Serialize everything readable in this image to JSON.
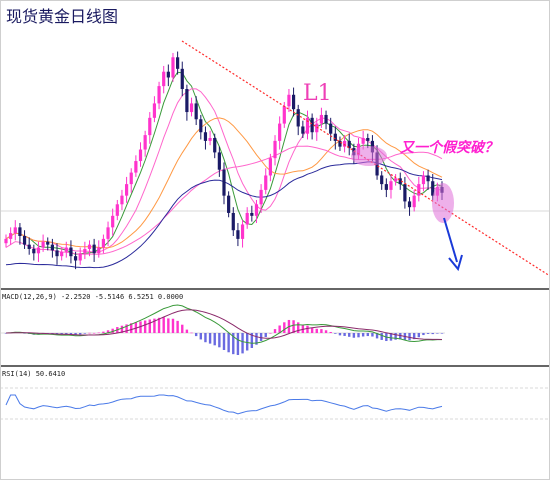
{
  "title": "现货黄金日线图",
  "trendline_label": "L1",
  "annotation": "又一个假突破？",
  "indicators": {
    "macd_label": "MACD(12,26,9) -2.2520 -5.5146 6.5251 0.0000",
    "rsi_label": "RSI(14) 50.6410"
  },
  "colors": {
    "bull_candle": "#ff33cc",
    "bear_candle": "#1a1a66",
    "trendline": "#ff2a2a",
    "ma_fast": "#3a9a3a",
    "ma_mid": "#ff66cc",
    "ma_slow": "#ff9944",
    "ma_long": "#2a2a9a",
    "rsi": "#4a7ae8",
    "arrow": "#1a3ad8",
    "highlight": "#e070d8"
  },
  "chart_data": {
    "type": "candlestick",
    "title": "现货黄金日线图",
    "closes": [
      1262,
      1266,
      1270,
      1264,
      1258,
      1255,
      1252,
      1256,
      1260,
      1258,
      1254,
      1250,
      1253,
      1256,
      1250,
      1247,
      1252,
      1255,
      1258,
      1252,
      1256,
      1262,
      1270,
      1278,
      1286,
      1292,
      1300,
      1308,
      1316,
      1324,
      1334,
      1346,
      1356,
      1368,
      1378,
      1374,
      1388,
      1380,
      1366,
      1350,
      1356,
      1345,
      1336,
      1330,
      1332,
      1322,
      1310,
      1292,
      1280,
      1268,
      1262,
      1272,
      1280,
      1278,
      1286,
      1296,
      1306,
      1318,
      1330,
      1342,
      1354,
      1362,
      1352,
      1340,
      1335,
      1346,
      1336,
      1342,
      1348,
      1342,
      1335,
      1330,
      1326,
      1330,
      1325,
      1320,
      1328,
      1332,
      1330,
      1322,
      1306,
      1300,
      1296,
      1302,
      1304,
      1300,
      1288,
      1284,
      1292,
      1300,
      1306,
      1302,
      1292,
      1298,
      1294
    ],
    "ylim": [
      1230,
      1400
    ]
  }
}
